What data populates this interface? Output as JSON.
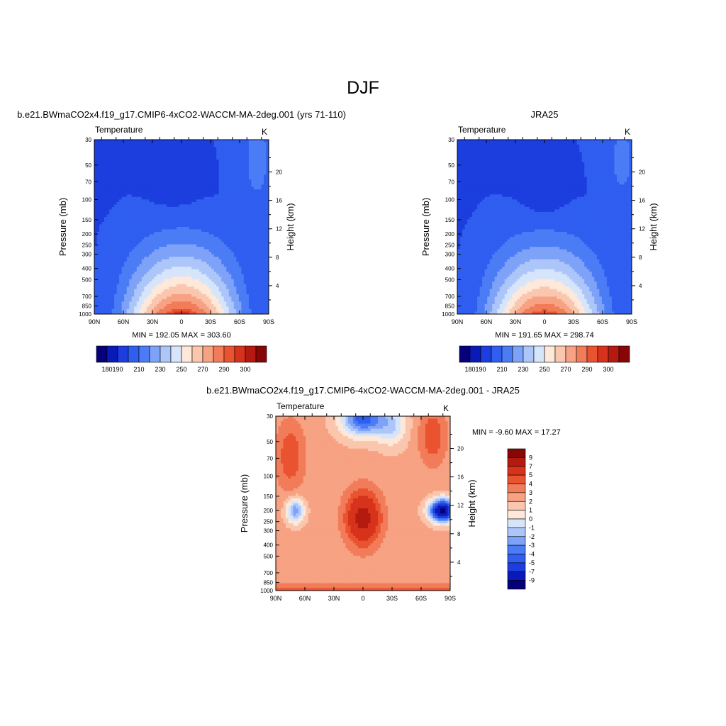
{
  "figure": {
    "title": "DJF"
  },
  "colors": {
    "temperature_palette": [
      "#06007a",
      "#0a1ab8",
      "#1c3ede",
      "#2f5ef0",
      "#4b7cf6",
      "#7ea2f7",
      "#adc6f9",
      "#d7e5fb",
      "#fde8da",
      "#fac7ae",
      "#f6a283",
      "#f27c59",
      "#ea5330",
      "#d7321b",
      "#b41a0f",
      "#870606"
    ],
    "difference_palette": [
      "#06007a",
      "#0a1ab8",
      "#1c3ede",
      "#2f5ef0",
      "#4b7cf6",
      "#7ea2f7",
      "#adc6f9",
      "#d7e5fb",
      "#fde8da",
      "#fac7ae",
      "#f6a283",
      "#f27c59",
      "#ea5330",
      "#d7321b",
      "#b41a0f",
      "#870606"
    ]
  },
  "chart_data": [
    {
      "type": "heatmap",
      "title": "b.e21.BWmaCO2x4.f19_g17.CMIP6-4xCO2-WACCM-MA-2deg.001 (yrs 71-110)",
      "left_label": "Temperature",
      "units": "K",
      "ylabel": "Pressure (mb)",
      "y2label": "Height (km)",
      "x_ticks": [
        "90N",
        "60N",
        "30N",
        "0",
        "30S",
        "60S",
        "90S"
      ],
      "y_ticks": [
        "30",
        "50",
        "70",
        "100",
        "150",
        "200",
        "250",
        "300",
        "400",
        "500",
        "700",
        "850",
        "1000"
      ],
      "y2_ticks": [
        "20",
        "16",
        "12",
        "8",
        "4"
      ],
      "min_max_text": "MIN = 192.05  MAX = 303.60",
      "stats": {
        "min": 192.05,
        "max": 303.6
      },
      "colorbar_labels": [
        "180",
        "190",
        "210",
        "230",
        "250",
        "270",
        "290",
        "300"
      ]
    },
    {
      "type": "heatmap",
      "title": "JRA25",
      "left_label": "Temperature",
      "units": "K",
      "ylabel": "Pressure (mb)",
      "y2label": "Height (km)",
      "x_ticks": [
        "90N",
        "60N",
        "30N",
        "0",
        "30S",
        "60S",
        "90S"
      ],
      "y_ticks": [
        "30",
        "50",
        "70",
        "100",
        "150",
        "200",
        "250",
        "300",
        "400",
        "500",
        "700",
        "850",
        "1000"
      ],
      "y2_ticks": [
        "20",
        "16",
        "12",
        "8",
        "4"
      ],
      "min_max_text": "MIN = 191.65  MAX = 298.74",
      "stats": {
        "min": 191.65,
        "max": 298.74
      },
      "colorbar_labels": [
        "180",
        "190",
        "210",
        "230",
        "250",
        "270",
        "290",
        "300"
      ]
    },
    {
      "type": "heatmap",
      "title": "b.e21.BWmaCO2x4.f19_g17.CMIP6-4xCO2-WACCM-MA-2deg.001 - JRA25",
      "left_label": "Temperature",
      "units": "K",
      "ylabel": "Pressure (mb)",
      "y2label": "Height (km)",
      "x_ticks": [
        "90N",
        "60N",
        "30N",
        "0",
        "30S",
        "60S",
        "90S"
      ],
      "y_ticks": [
        "30",
        "50",
        "70",
        "100",
        "150",
        "200",
        "250",
        "300",
        "400",
        "500",
        "700",
        "850",
        "1000"
      ],
      "y2_ticks": [
        "20",
        "16",
        "12",
        "8",
        "4"
      ],
      "min_max_text": "MIN =  -9.60  MAX =  17.27",
      "stats": {
        "min": -9.6,
        "max": 17.27
      },
      "colorbar_labels": [
        "9",
        "7",
        "5",
        "4",
        "3",
        "2",
        "1",
        "0",
        "-1",
        "-2",
        "-3",
        "-4",
        "-5",
        "-7",
        "-9"
      ]
    }
  ]
}
